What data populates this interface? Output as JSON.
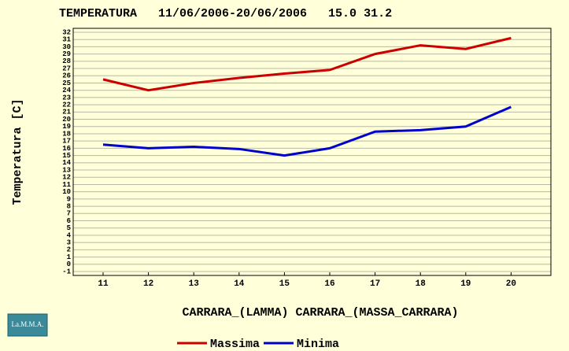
{
  "chart_data": {
    "type": "line",
    "title": "TEMPERATURA   11/06/2006-20/06/2006   15.0 31.2",
    "y_label": "Temperatura [C]",
    "subtitle": "CARRARA_(LAMMA) CARRARA_(MASSA_CARRARA)",
    "logo": "La.M.M.A.",
    "categories": [
      "11",
      "12",
      "13",
      "14",
      "15",
      "16",
      "17",
      "18",
      "19",
      "20"
    ],
    "series": [
      {
        "name": "Massima",
        "color": "#cc0000",
        "values": [
          25.5,
          24,
          25,
          25.7,
          26.3,
          26.8,
          29,
          30.2,
          29.7,
          31.2
        ]
      },
      {
        "name": "Minima",
        "color": "#0000cc",
        "values": [
          16.5,
          16,
          16.2,
          15.9,
          15,
          16,
          18.3,
          18.5,
          19,
          21.7
        ]
      }
    ],
    "ylim": [
      -1,
      32
    ],
    "yticks": [
      -1,
      0,
      1,
      2,
      3,
      4,
      5,
      6,
      7,
      8,
      9,
      10,
      11,
      12,
      13,
      14,
      15,
      16,
      17,
      18,
      19,
      20,
      21,
      22,
      23,
      24,
      25,
      26,
      27,
      28,
      29,
      30,
      31,
      32
    ],
    "grid": true
  }
}
